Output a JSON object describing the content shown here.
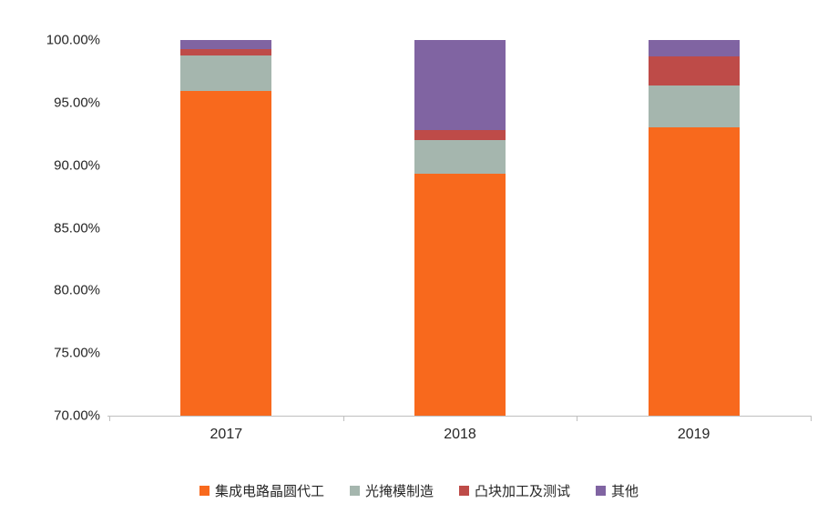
{
  "chart_data": {
    "type": "bar",
    "stacked": true,
    "title": "",
    "xlabel": "",
    "ylabel": "",
    "categories": [
      "2017",
      "2018",
      "2019"
    ],
    "series": [
      {
        "name": "集成电路晶圆代工",
        "color": "#F8691D",
        "values": [
          95.9,
          89.3,
          93.0
        ]
      },
      {
        "name": "光掩模制造",
        "color": "#A5B6AE",
        "values": [
          2.9,
          2.7,
          3.4
        ]
      },
      {
        "name": "凸块加工及测试",
        "color": "#BE4B48",
        "values": [
          0.5,
          0.8,
          2.3
        ]
      },
      {
        "name": "其他",
        "color": "#8064A2",
        "values": [
          0.7,
          7.2,
          1.3
        ]
      }
    ],
    "ylim": [
      70,
      100
    ],
    "ytick_step": 5,
    "ytick_labels": [
      "70.00%",
      "75.00%",
      "80.00%",
      "85.00%",
      "90.00%",
      "95.00%",
      "100.00%"
    ],
    "grid": false,
    "legend_position": "bottom",
    "axis_color": "#bfbfbf",
    "text_color": "#262626"
  }
}
